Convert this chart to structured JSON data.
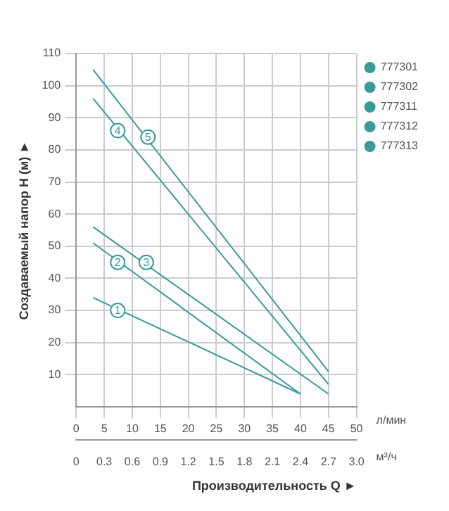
{
  "chart_data": {
    "type": "line",
    "xlabel": "Производительность Q ►",
    "ylabel": "Создаваемый напор H (м) ►",
    "x2label": "м³/ч",
    "xlim": [
      0,
      50
    ],
    "xticks": [
      0,
      5,
      10,
      15,
      20,
      25,
      30,
      35,
      40,
      45,
      50
    ],
    "x2lim": [
      0,
      3.0
    ],
    "x2ticks": [
      0,
      0.3,
      0.6,
      0.9,
      1.2,
      1.5,
      1.8,
      2.1,
      2.4,
      2.7,
      {
        "value": 3.0,
        "label": "3.0"
      }
    ],
    "ylim": [
      0,
      110
    ],
    "yticks": [
      10,
      20,
      30,
      40,
      50,
      60,
      70,
      80,
      90,
      100,
      110
    ],
    "grid": true,
    "legend": "top right",
    "marker": "none",
    "line_style": "solid",
    "series": [
      {
        "name": "777301",
        "color": "#3a9a9a",
        "x": [
          3,
          40
        ],
        "values": [
          34,
          4
        ]
      },
      {
        "name": "777302",
        "color": "#3a9a9a",
        "x": [
          3,
          40
        ],
        "values": [
          51,
          4
        ]
      },
      {
        "name": "777311",
        "color": "#3a9a9a",
        "x": [
          3,
          45
        ],
        "values": [
          56,
          4
        ]
      },
      {
        "name": "777312",
        "color": "#3a9a9a",
        "x": [
          3,
          45
        ],
        "values": [
          96,
          7
        ]
      },
      {
        "name": "777313",
        "color": "#3a9a9a",
        "x": [
          3,
          45
        ],
        "values": [
          105,
          11
        ]
      }
    ],
    "annotations": [
      "л/мин",
      {
        "text": "1",
        "x": 7.4,
        "y": 30
      },
      {
        "text": "2",
        "x": 7.4,
        "y": 45
      },
      {
        "text": "3",
        "x": 12.5,
        "y": 45
      },
      {
        "text": "4",
        "x": 7.4,
        "y": 86
      },
      {
        "text": "5",
        "x": 12.8,
        "y": 84
      }
    ]
  }
}
